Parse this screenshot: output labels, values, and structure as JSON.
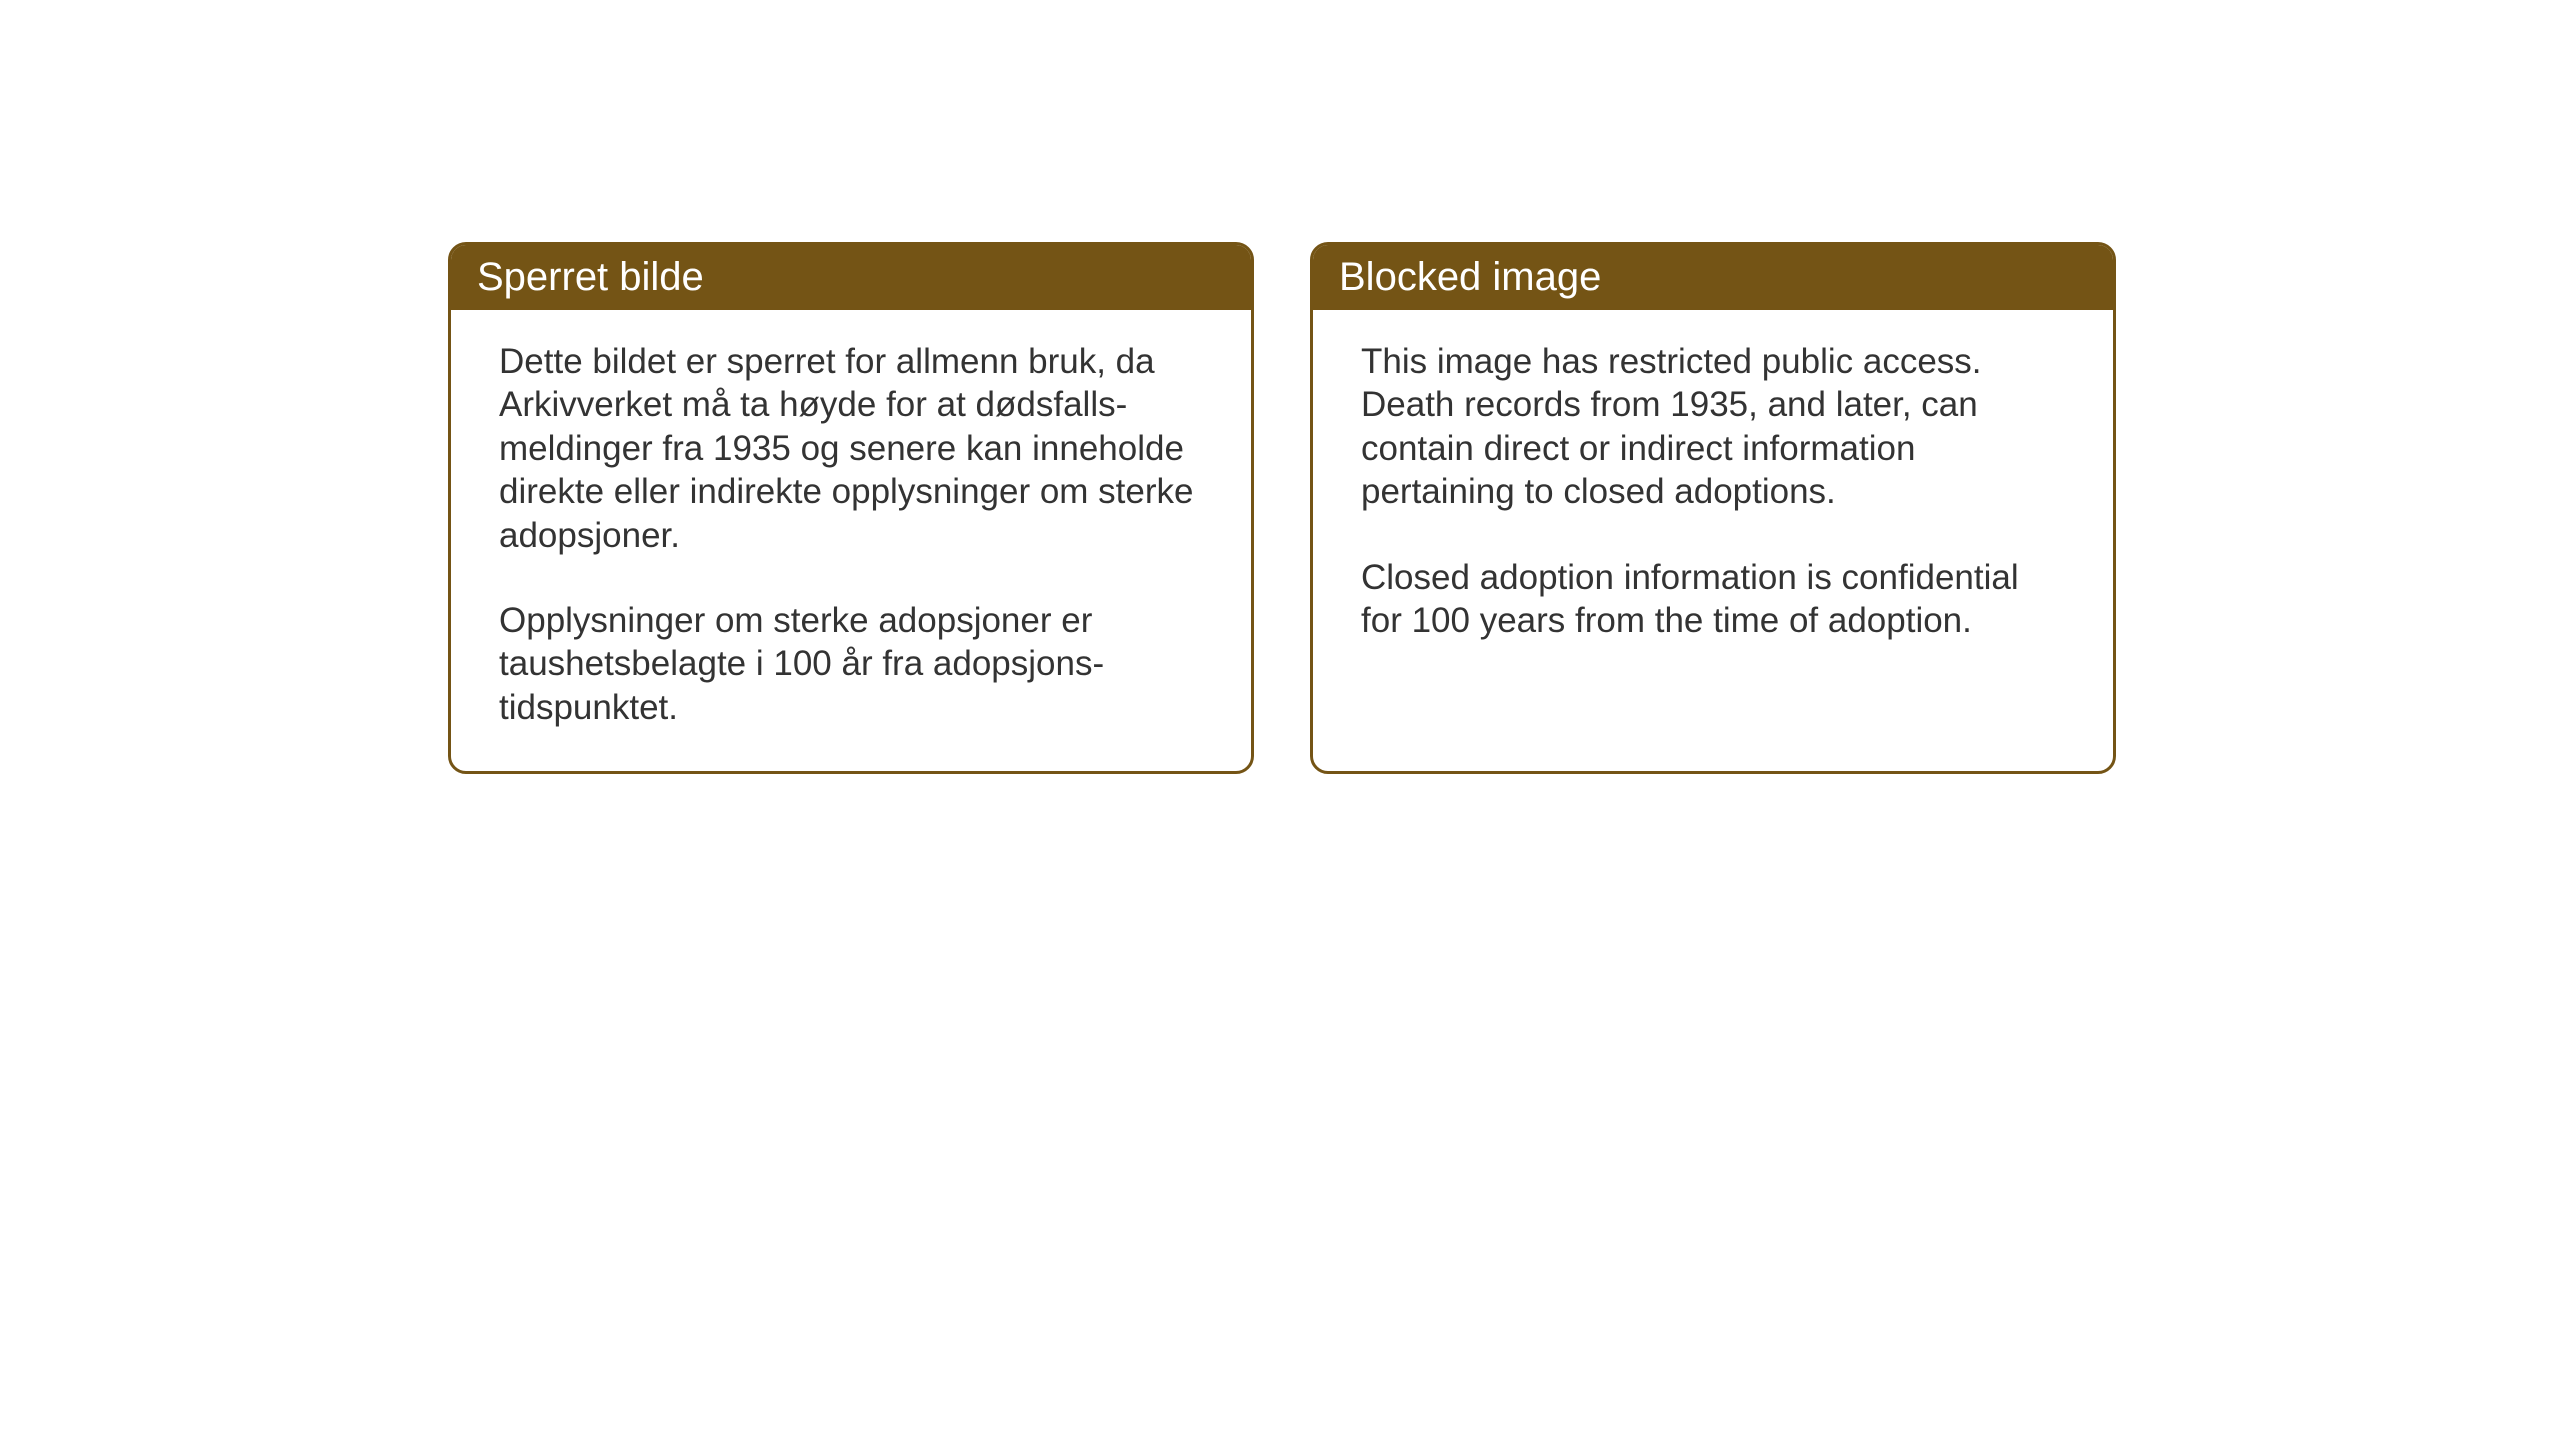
{
  "layout": {
    "background_color": "#ffffff",
    "card_border_color": "#745415",
    "header_background_color": "#745415",
    "header_text_color": "#ffffff",
    "body_text_color": "#333333",
    "card_border_radius": 18,
    "card_border_width": 3,
    "header_fontsize": 40,
    "body_fontsize": 35,
    "card_gap": 56
  },
  "cards": {
    "norwegian": {
      "title": "Sperret bilde",
      "paragraph1": "Dette bildet er sperret for allmenn bruk, da Arkivverket må ta høyde for at dødsfalls-meldinger fra 1935 og senere kan inneholde direkte eller indirekte opplysninger om sterke adopsjoner.",
      "paragraph2": "Opplysninger om sterke adopsjoner er taushetsbelagte i 100 år fra adopsjons-tidspunktet."
    },
    "english": {
      "title": "Blocked image",
      "paragraph1": "This image has restricted public access. Death records from 1935, and later, can contain direct or indirect information pertaining to closed adoptions.",
      "paragraph2": "Closed adoption information is confidential for 100 years from the time of adoption."
    }
  }
}
